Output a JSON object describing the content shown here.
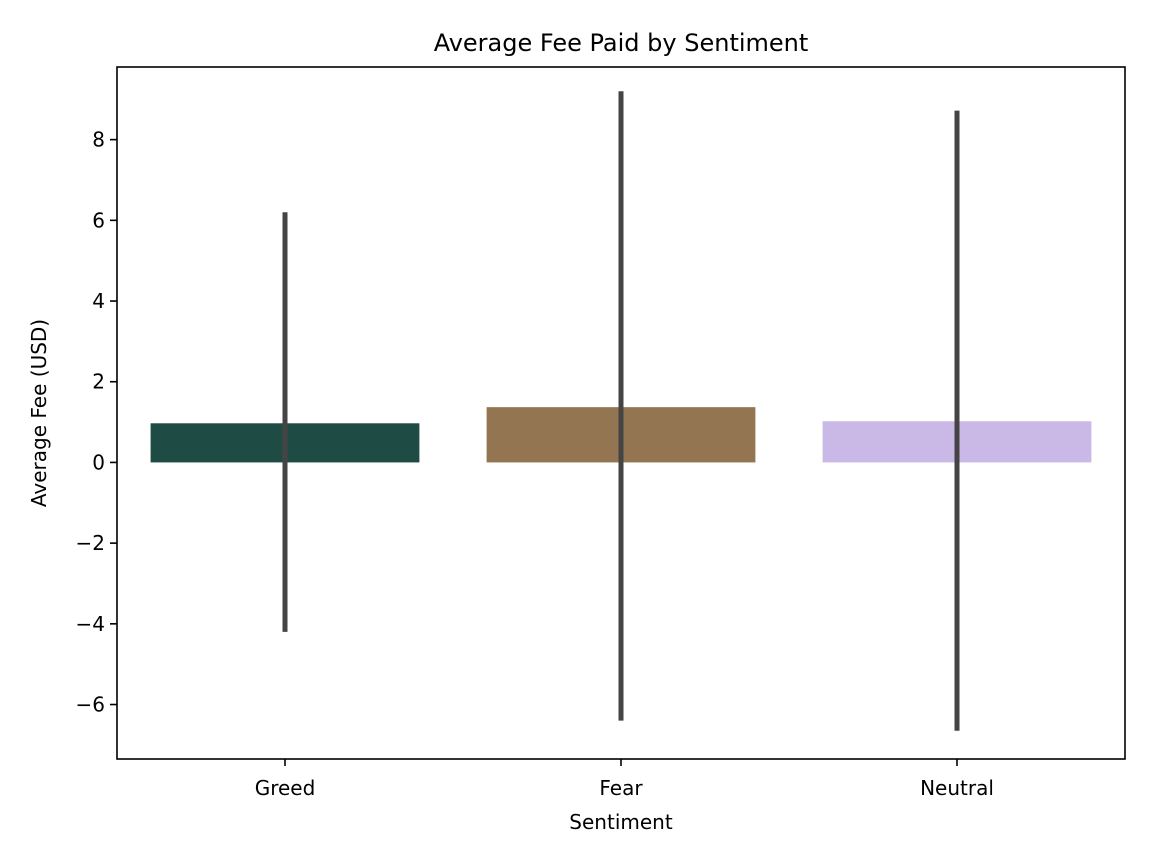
{
  "chart_data": {
    "type": "bar",
    "title": "Average Fee Paid by Sentiment",
    "xlabel": "Sentiment",
    "ylabel": "Average Fee (USD)",
    "categories": [
      "Greed",
      "Fear",
      "Neutral"
    ],
    "values": [
      0.97,
      1.37,
      1.02
    ],
    "error_bars": [
      {
        "low": -4.2,
        "high": 6.2
      },
      {
        "low": -6.4,
        "high": 9.2
      },
      {
        "low": -6.65,
        "high": 8.72
      }
    ],
    "colors": [
      "#1e4b43",
      "#937651",
      "#cab8e6"
    ],
    "error_bar_color": "#444444",
    "ylim": [
      -7.35,
      9.8
    ],
    "yticks": [
      -6,
      -4,
      -2,
      0,
      2,
      4,
      6,
      8
    ],
    "ytick_labels": [
      "−6",
      "−4",
      "−2",
      "0",
      "2",
      "4",
      "6",
      "8"
    ],
    "grid": false,
    "legend": "none"
  }
}
